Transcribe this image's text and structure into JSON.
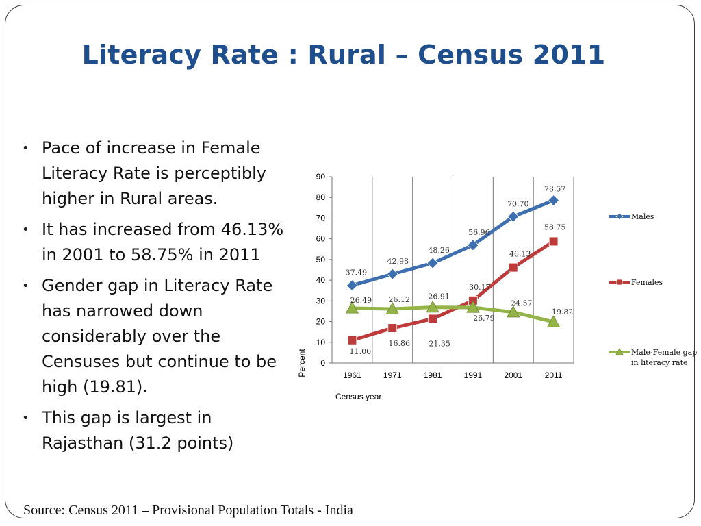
{
  "slide": {
    "title": "Literacy Rate : Rural – Census 2011",
    "bullets": [
      "Pace of increase in Female Literacy Rate is perceptibly higher in Rural areas.",
      "It has increased from 46.13% in 2001 to 58.75% in 2011",
      "Gender gap in Literacy Rate has narrowed down considerably over the Censuses but continue to be high (19.81).",
      "This gap is largest in Rajasthan (31.2 points)"
    ],
    "source": "Source: Census 2011 – Provisional Population Totals - India"
  },
  "chart_data": {
    "type": "line",
    "title": "",
    "xlabel": "Census year",
    "ylabel": "Percent",
    "categories": [
      "1961",
      "1971",
      "1981",
      "1991",
      "2001",
      "2011"
    ],
    "ylim": [
      0,
      90
    ],
    "yticks": [
      0,
      10,
      20,
      30,
      40,
      50,
      60,
      70,
      80,
      90
    ],
    "grid": "vertical",
    "legend": "right",
    "series": [
      {
        "name": "Males",
        "values": [
          37.49,
          42.98,
          48.26,
          56.96,
          70.7,
          78.57
        ],
        "labels": [
          "37.49",
          "42.98",
          "48.26",
          "56.96",
          "70.70",
          "78.57"
        ],
        "color": "#3e6fb0",
        "marker": "diamond"
      },
      {
        "name": "Females",
        "values": [
          11.0,
          16.86,
          21.35,
          30.17,
          46.13,
          58.75
        ],
        "labels": [
          "11.00",
          "16.86",
          "21.35",
          "30.17",
          "46.13",
          "58.75"
        ],
        "color": "#bd3b3a",
        "marker": "square"
      },
      {
        "name": "Male-Female gap in literacy rate",
        "values": [
          26.49,
          26.12,
          26.91,
          26.79,
          24.57,
          19.82
        ],
        "labels": [
          "26.49",
          "26.12",
          "26.91",
          "26.79",
          "24.57",
          "19.82"
        ],
        "color": "#94b448",
        "marker": "triangle"
      }
    ]
  }
}
